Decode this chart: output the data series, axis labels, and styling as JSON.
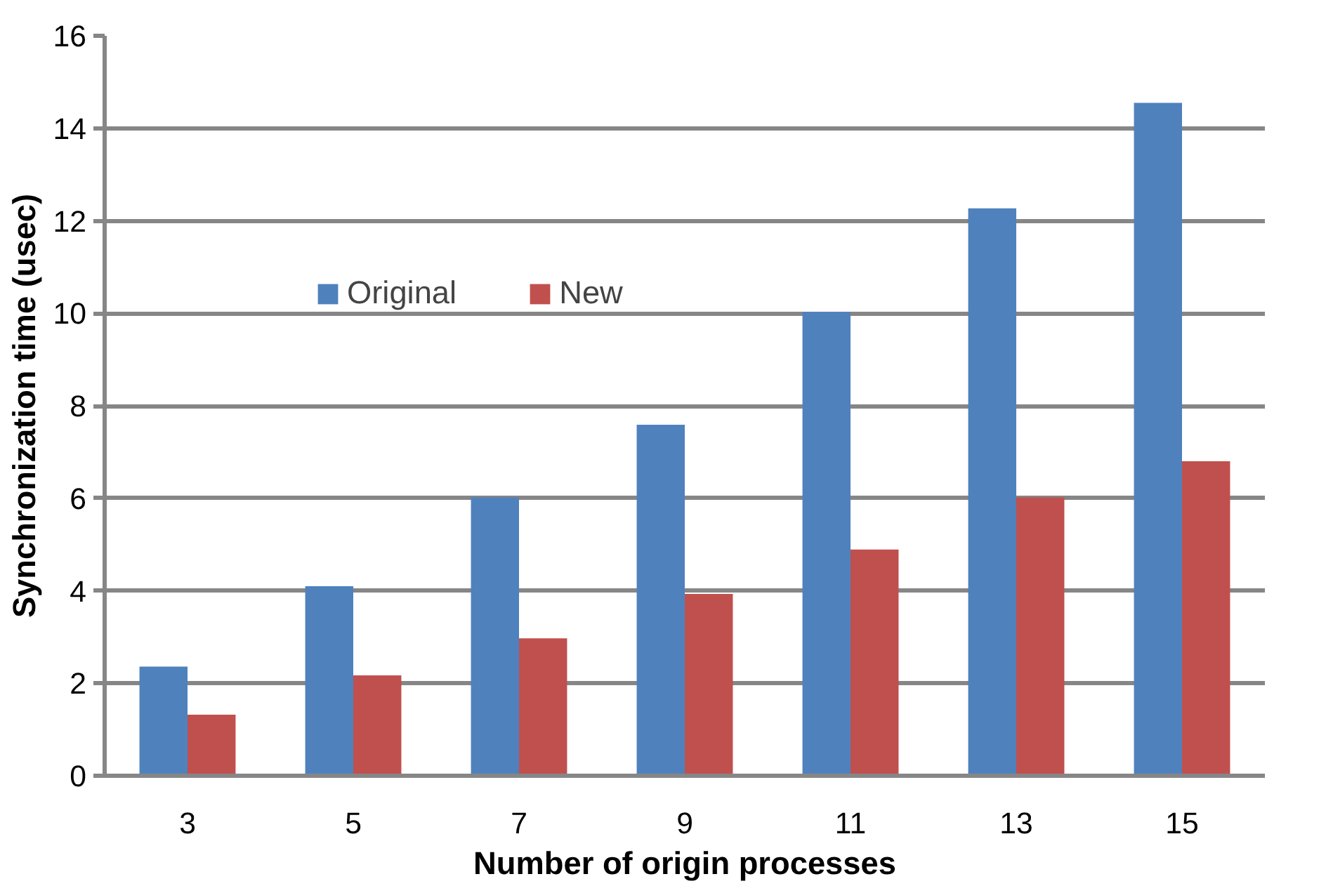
{
  "chart_data": {
    "type": "bar",
    "xlabel": "Number of origin processes",
    "ylabel": "Synchronization time (usec)",
    "categories": [
      "3",
      "5",
      "7",
      "9",
      "11",
      "13",
      "15"
    ],
    "series": [
      {
        "name": "Original",
        "color": "#4f81bd",
        "values": [
          2.36,
          4.1,
          6.02,
          7.59,
          10.03,
          12.27,
          14.55
        ]
      },
      {
        "name": "New",
        "color": "#c0504d",
        "values": [
          1.32,
          2.17,
          2.97,
          3.93,
          4.89,
          6.02,
          6.8
        ]
      }
    ],
    "ylim": [
      0,
      16
    ],
    "yticks": [
      0,
      2,
      4,
      6,
      8,
      10,
      12,
      14,
      16
    ],
    "grid": "y",
    "legend": "top left"
  }
}
